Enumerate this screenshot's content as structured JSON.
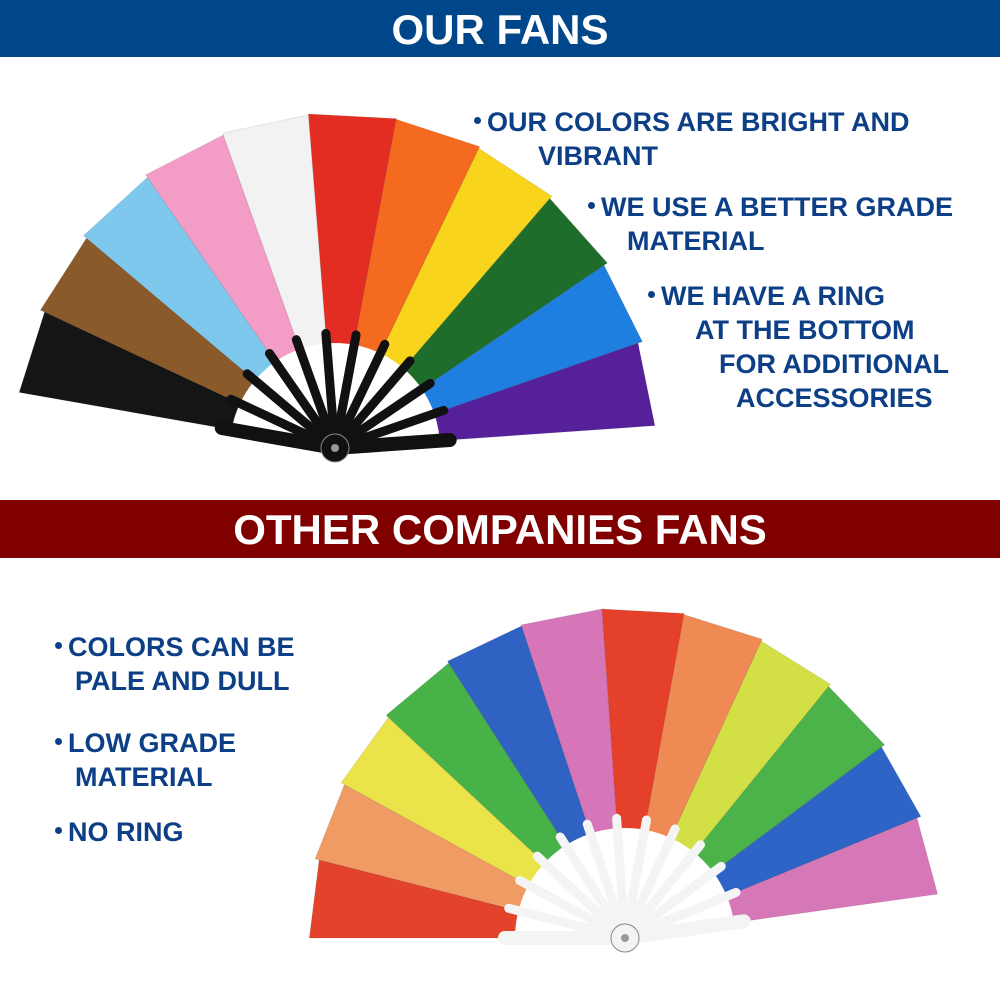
{
  "top_section": {
    "title": "OUR FANS",
    "bullets": [
      {
        "line1": "OUR COLORS ARE BRIGHT AND",
        "line2": "VIBRANT"
      },
      {
        "line1": "WE USE A BETTER GRADE",
        "line2": "MATERIAL"
      },
      {
        "line1": "WE HAVE A RING",
        "line2": "AT THE BOTTOM",
        "line3": "FOR ADDITIONAL",
        "line4": "ACCESSORIES"
      }
    ],
    "fan_colors": [
      "#151515",
      "#8a5a2a",
      "#7ec8ee",
      "#f29cc6",
      "#f2f2f2",
      "#e42d22",
      "#f46b1f",
      "#f8d51c",
      "#1f6d2b",
      "#1f7fe0",
      "#55209a"
    ],
    "rib_color": "#111111"
  },
  "bottom_section": {
    "title": "OTHER COMPANIES FANS",
    "bullets": [
      {
        "line1": "COLORS CAN BE",
        "line2": "PALE AND DULL"
      },
      {
        "line1": "LOW GRADE",
        "line2": "MATERIAL"
      },
      {
        "line1": "NO RING"
      }
    ],
    "fan_colors": [
      "#e2432a",
      "#f09a64",
      "#eae34a",
      "#47b248",
      "#2f62c2",
      "#d675b8",
      "#e5402a",
      "#f08a55",
      "#d2e046",
      "#4cb24a",
      "#2d64c6",
      "#d677b8"
    ],
    "rib_color": "#f4f4f4"
  },
  "colors": {
    "top_band": "#00468a",
    "bottom_band": "#800000",
    "text": "#0d3f86"
  }
}
